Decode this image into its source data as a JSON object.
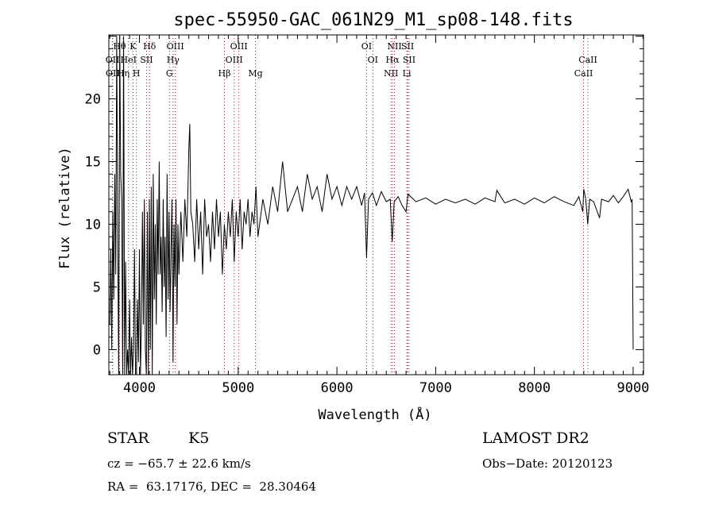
{
  "chart_data": {
    "type": "line",
    "title": "spec-55950-GAC_061N29_M1_sp08-148.fits",
    "xlabel": "Wavelength (Å)",
    "ylabel": "Flux (relative)",
    "xlim": [
      3690,
      9105
    ],
    "ylim": [
      -2.0,
      25.1
    ],
    "xticks": [
      4000,
      5000,
      6000,
      7000,
      8000,
      9000
    ],
    "yticks": [
      0,
      5,
      10,
      15,
      20
    ],
    "grid": false,
    "series": [
      {
        "name": "spectrum",
        "wavelength": [
          3700,
          3710,
          3720,
          3730,
          3740,
          3750,
          3760,
          3770,
          3780,
          3790,
          3800,
          3810,
          3820,
          3830,
          3840,
          3850,
          3860,
          3870,
          3880,
          3890,
          3900,
          3910,
          3920,
          3930,
          3940,
          3950,
          3960,
          3970,
          3980,
          3990,
          4000,
          4010,
          4020,
          4030,
          4040,
          4050,
          4060,
          4070,
          4080,
          4090,
          4100,
          4110,
          4120,
          4130,
          4140,
          4150,
          4160,
          4170,
          4180,
          4190,
          4200,
          4210,
          4220,
          4230,
          4240,
          4250,
          4260,
          4270,
          4280,
          4290,
          4300,
          4310,
          4320,
          4330,
          4340,
          4350,
          4360,
          4370,
          4380,
          4390,
          4400,
          4420,
          4440,
          4460,
          4480,
          4500,
          4510,
          4520,
          4540,
          4560,
          4580,
          4600,
          4620,
          4640,
          4660,
          4680,
          4700,
          4720,
          4740,
          4760,
          4780,
          4800,
          4820,
          4840,
          4860,
          4880,
          4900,
          4920,
          4940,
          4960,
          4980,
          5000,
          5020,
          5040,
          5060,
          5080,
          5100,
          5120,
          5140,
          5160,
          5180,
          5200,
          5250,
          5300,
          5350,
          5400,
          5450,
          5500,
          5550,
          5600,
          5650,
          5700,
          5750,
          5800,
          5850,
          5900,
          5950,
          6000,
          6050,
          6100,
          6150,
          6200,
          6250,
          6280,
          6300,
          6320,
          6360,
          6400,
          6450,
          6500,
          6540,
          6560,
          6580,
          6620,
          6660,
          6700,
          6720,
          6800,
          6900,
          7000,
          7100,
          7200,
          7300,
          7400,
          7500,
          7600,
          7620,
          7700,
          7800,
          7900,
          8000,
          8100,
          8200,
          8300,
          8400,
          8450,
          8490,
          8500,
          8520,
          8540,
          8560,
          8600,
          8660,
          8680,
          8750,
          8800,
          8850,
          8900,
          8950,
          8980,
          8990,
          9000
        ],
        "flux": [
          2,
          8,
          0,
          11,
          4,
          14,
          6,
          25,
          9,
          -2,
          25,
          14,
          12,
          -2,
          25,
          -2,
          7,
          -2,
          0,
          -2,
          4,
          -2,
          1,
          -2,
          0,
          8,
          -2,
          -2,
          4,
          -1,
          8,
          -2,
          2,
          11,
          2,
          12,
          0,
          -2,
          11,
          -2,
          12,
          0,
          13,
          -2,
          14,
          4,
          10,
          2,
          12,
          6,
          15,
          6,
          9,
          3,
          12,
          5,
          9,
          1,
          14,
          4,
          11,
          3,
          8,
          12,
          -1,
          10,
          5,
          12,
          2,
          10,
          6,
          11,
          7,
          12,
          9,
          16,
          18,
          11,
          10,
          7,
          12,
          8,
          11,
          6,
          12,
          9,
          10,
          7,
          11,
          8,
          12,
          9,
          11,
          6,
          10,
          8,
          11,
          9,
          12,
          7,
          11,
          9,
          12,
          8,
          11,
          10,
          12,
          9,
          11,
          10,
          13,
          9,
          12,
          10,
          13,
          11,
          15,
          11,
          12,
          13,
          11,
          14,
          12,
          13,
          11,
          14,
          12,
          13,
          11.5,
          13,
          12,
          13,
          11.5,
          12.5,
          7.3,
          12,
          12.5,
          11.5,
          12.6,
          11.8,
          12,
          8.6,
          11.8,
          12.2,
          11.5,
          11,
          12.4,
          11.8,
          12.1,
          11.6,
          12,
          11.7,
          12,
          11.6,
          12.1,
          11.8,
          12.7,
          11.7,
          12,
          11.6,
          12.1,
          11.7,
          12.2,
          11.8,
          11.5,
          12.2,
          11,
          12.8,
          12,
          10,
          12,
          11.8,
          10.5,
          12,
          11.8,
          12.3,
          11.7,
          12.2,
          12.8,
          11.8,
          12,
          0
        ]
      }
    ],
    "line_markers": [
      {
        "label": "Hθ",
        "wavelength": 3798,
        "row": 0
      },
      {
        "label": "K",
        "wavelength": 3934,
        "row": 0
      },
      {
        "label": "Hδ",
        "wavelength": 4102,
        "row": 0
      },
      {
        "label": "OIII",
        "wavelength": 4363,
        "row": 0
      },
      {
        "label": "OIII",
        "wavelength": 5007,
        "row": 0
      },
      {
        "label": "OI",
        "wavelength": 6300,
        "row": 0
      },
      {
        "label": "NII",
        "wavelength": 6583,
        "row": 0
      },
      {
        "label": "SII",
        "wavelength": 6716,
        "row": 0
      },
      {
        "label": "OII",
        "wavelength": 3727,
        "row": 1
      },
      {
        "label": "HeI",
        "wavelength": 3889,
        "row": 1
      },
      {
        "label": "SII",
        "wavelength": 4072,
        "row": 1
      },
      {
        "label": "Hγ",
        "wavelength": 4340,
        "row": 1
      },
      {
        "label": "OIII",
        "wavelength": 4959,
        "row": 1
      },
      {
        "label": "OI",
        "wavelength": 6364,
        "row": 1
      },
      {
        "label": "Hα",
        "wavelength": 6563,
        "row": 1
      },
      {
        "label": "SII",
        "wavelength": 6731,
        "row": 1
      },
      {
        "label": "CaII",
        "wavelength": 8542,
        "row": 1
      },
      {
        "label": "OII",
        "wavelength": 3729,
        "row": 2
      },
      {
        "label": "Hη",
        "wavelength": 3835,
        "row": 2
      },
      {
        "label": "H",
        "wavelength": 3969,
        "row": 2
      },
      {
        "label": "G",
        "wavelength": 4304,
        "row": 2
      },
      {
        "label": "Hβ",
        "wavelength": 4861,
        "row": 2
      },
      {
        "label": "Mg",
        "wavelength": 5175,
        "row": 2
      },
      {
        "label": "NII",
        "wavelength": 6548,
        "row": 2
      },
      {
        "label": "Li",
        "wavelength": 6708,
        "row": 2
      },
      {
        "label": "CaII",
        "wavelength": 8498,
        "row": 2
      }
    ],
    "colors": {
      "line": "#000000",
      "marker": "#8b1a1a"
    }
  },
  "info": {
    "class": "STAR",
    "subclass": "K5",
    "survey": "LAMOST DR2",
    "cz": "cz = −65.7 ± 22.6 km/s",
    "obs_date": "Obs−Date: 20120123",
    "coords": "RA =  63.17176, DEC =  28.30464"
  }
}
